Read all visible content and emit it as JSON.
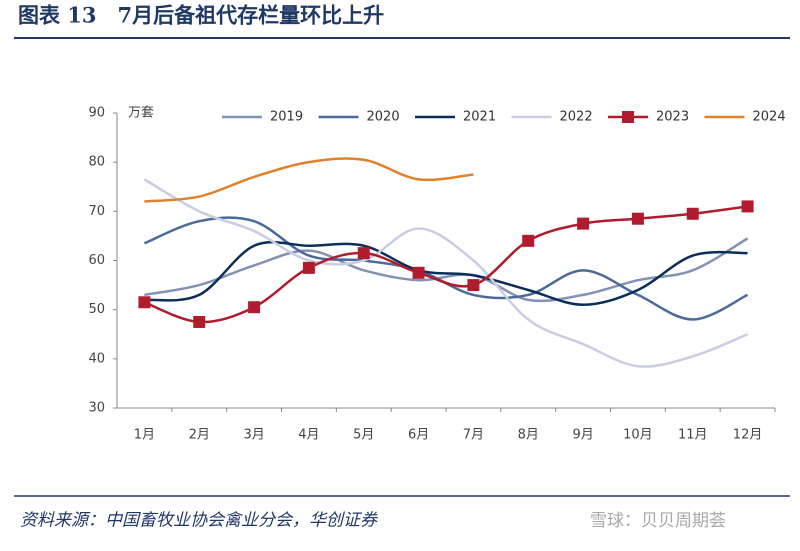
{
  "chart_data": {
    "type": "line",
    "title": "图表 13　7月后备祖代存栏量环比上升",
    "y_label": "万套",
    "source": "资料来源：中国畜牧业协会禽业分会，华创证券",
    "watermark": "雪球：贝贝周期荟",
    "categories": [
      "1月",
      "2月",
      "3月",
      "4月",
      "5月",
      "6月",
      "7月",
      "8月",
      "9月",
      "10月",
      "11月",
      "12月"
    ],
    "ylim": [
      30,
      90
    ],
    "yticks": [
      30,
      40,
      50,
      60,
      70,
      80,
      90
    ],
    "legend": "top",
    "series": [
      {
        "name": "2019",
        "color": "#8391b4",
        "values": [
          53,
          55,
          59,
          62,
          58,
          56,
          57,
          52,
          53,
          56,
          58,
          64.5
        ]
      },
      {
        "name": "2020",
        "color": "#4a6a9a",
        "values": [
          63.5,
          68,
          68,
          61,
          60,
          58,
          53,
          53,
          58,
          53,
          48,
          53
        ]
      },
      {
        "name": "2021",
        "color": "#0b2d5a",
        "values": [
          52,
          53,
          63,
          63,
          63,
          58,
          57,
          54,
          51,
          54,
          61,
          61.5
        ]
      },
      {
        "name": "2022",
        "color": "#c9cde0",
        "values": [
          76.5,
          70,
          66,
          60,
          60,
          66.5,
          60,
          48,
          43,
          38.5,
          40.5,
          45
        ]
      },
      {
        "name": "2023",
        "color": "#b01c2e",
        "marker": "square",
        "values": [
          51.5,
          47.5,
          50.5,
          58.5,
          61.5,
          57.5,
          55,
          64,
          67.5,
          68.5,
          69.5,
          71
        ]
      },
      {
        "name": "2024",
        "color": "#e0822a",
        "values": [
          72,
          73,
          77,
          80,
          80.5,
          76.5,
          77.5,
          null,
          null,
          null,
          null,
          null
        ]
      }
    ]
  }
}
